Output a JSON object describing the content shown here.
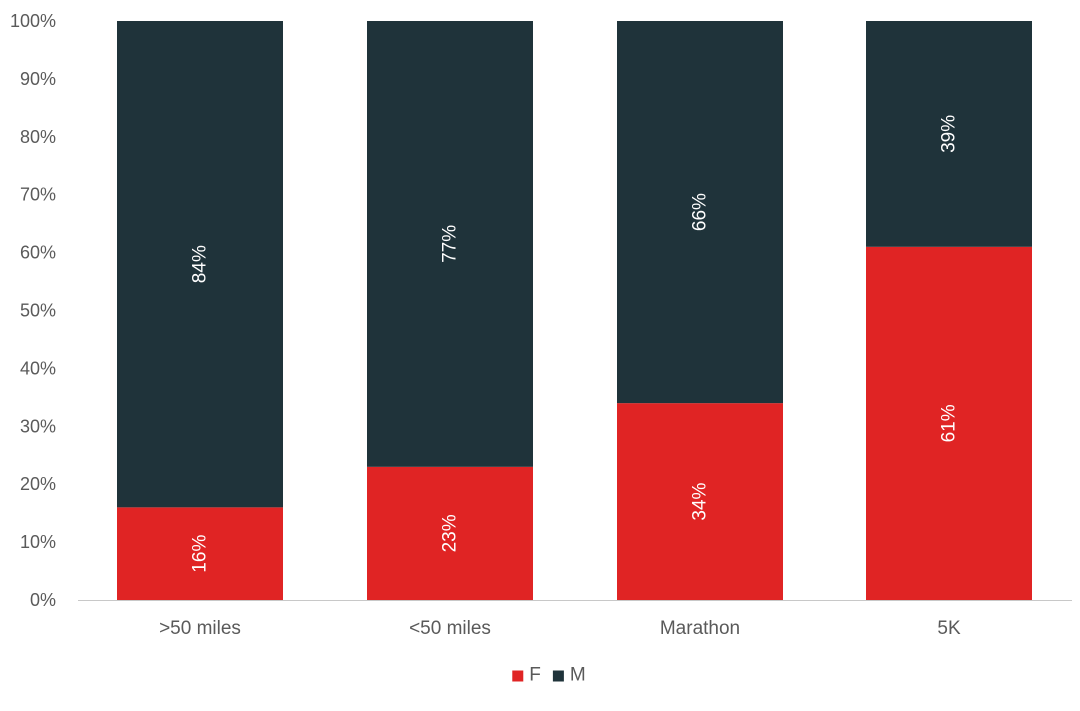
{
  "chart_data": {
    "type": "bar",
    "stacked": true,
    "categories": [
      ">50 miles",
      "<50 miles",
      "Marathon",
      "5K"
    ],
    "series": [
      {
        "name": "F",
        "color": "#e02424",
        "values": [
          16,
          23,
          34,
          61
        ],
        "labels": [
          "16%",
          "23%",
          "34%",
          "61%"
        ]
      },
      {
        "name": "M",
        "color": "#1f333a",
        "values": [
          84,
          77,
          66,
          39
        ],
        "labels": [
          "84%",
          "77%",
          "66%",
          "39%"
        ]
      }
    ],
    "yticks": [
      "0%",
      "10%",
      "20%",
      "30%",
      "40%",
      "50%",
      "60%",
      "70%",
      "80%",
      "90%",
      "100%"
    ],
    "ylim": [
      0,
      100
    ],
    "grid": false,
    "legend_position": "bottom",
    "title": "",
    "xlabel": "",
    "ylabel": ""
  }
}
